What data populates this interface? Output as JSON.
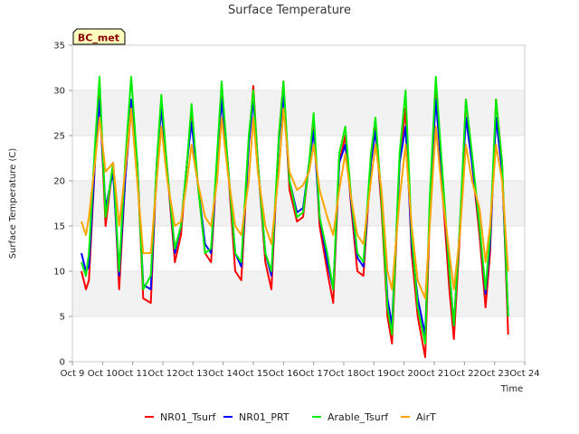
{
  "chart_data": {
    "type": "line",
    "title": "Surface Temperature",
    "xlabel": "Time",
    "ylabel": "Surface Temperature (C)",
    "site_label": "BC_met",
    "xlim": [
      9,
      24
    ],
    "ylim": [
      0,
      35
    ],
    "grid": "horizontal bands",
    "legend_position": "bottom",
    "x_ticks": [
      {
        "value": 9,
        "label": "Oct 9"
      },
      {
        "value": 10,
        "label": "Oct 10"
      },
      {
        "value": 11,
        "label": "Oct 11"
      },
      {
        "value": 12,
        "label": "Oct 12"
      },
      {
        "value": 13,
        "label": "Oct 13"
      },
      {
        "value": 14,
        "label": "Oct 14"
      },
      {
        "value": 15,
        "label": "Oct 15"
      },
      {
        "value": 16,
        "label": "Oct 16"
      },
      {
        "value": 17,
        "label": "Oct 17"
      },
      {
        "value": 18,
        "label": "Oct 18"
      },
      {
        "value": 19,
        "label": "Oct 19"
      },
      {
        "value": 20,
        "label": "Oct 20"
      },
      {
        "value": 21,
        "label": "Oct 21"
      },
      {
        "value": 22,
        "label": "Oct 22"
      },
      {
        "value": 23,
        "label": "Oct 23"
      },
      {
        "value": 24,
        "label": "Oct 24"
      }
    ],
    "y_ticks": [
      0,
      5,
      10,
      15,
      20,
      25,
      30,
      35
    ],
    "series": [
      {
        "name": "NR01_Tsurf",
        "color": "#ff0000",
        "x": [
          9.3,
          9.45,
          9.55,
          9.75,
          9.9,
          10.1,
          10.35,
          10.55,
          10.75,
          10.95,
          11.15,
          11.35,
          11.6,
          11.8,
          11.95,
          12.15,
          12.4,
          12.6,
          12.8,
          12.95,
          13.15,
          13.4,
          13.6,
          13.8,
          13.95,
          14.15,
          14.4,
          14.6,
          14.85,
          15.0,
          15.15,
          15.4,
          15.6,
          15.85,
          16.0,
          16.2,
          16.45,
          16.65,
          16.85,
          17.0,
          17.2,
          17.45,
          17.65,
          17.85,
          18.05,
          18.25,
          18.45,
          18.65,
          18.9,
          19.05,
          19.25,
          19.45,
          19.6,
          19.85,
          20.05,
          20.25,
          20.45,
          20.7,
          20.85,
          21.05,
          21.25,
          21.5,
          21.65,
          21.85,
          22.05,
          22.25,
          22.5,
          22.7,
          22.85,
          23.05,
          23.25,
          23.45
        ],
        "y": [
          10,
          8,
          9,
          22,
          30,
          15,
          22,
          8,
          20,
          28,
          22,
          7,
          6.5,
          22,
          29,
          21,
          11,
          14,
          22,
          28,
          20,
          12,
          11,
          22,
          30.5,
          22,
          10,
          9,
          24,
          30.5,
          22,
          11,
          8,
          25,
          31,
          19,
          15.5,
          16,
          22,
          27,
          15,
          10,
          6.5,
          22,
          25,
          17,
          10,
          9.5,
          22,
          26,
          17,
          5,
          2,
          22,
          28,
          12,
          5,
          0.5,
          16,
          30,
          20,
          8,
          2.5,
          14,
          29,
          22,
          14,
          6,
          12,
          29,
          22,
          3
        ]
      },
      {
        "name": "NR01_PRT",
        "color": "#0000ff",
        "x": [
          9.3,
          9.45,
          9.55,
          9.75,
          9.9,
          10.1,
          10.35,
          10.55,
          10.75,
          10.95,
          11.15,
          11.35,
          11.6,
          11.8,
          11.95,
          12.15,
          12.4,
          12.6,
          12.8,
          12.95,
          13.15,
          13.4,
          13.6,
          13.8,
          13.95,
          14.15,
          14.4,
          14.6,
          14.85,
          15.0,
          15.15,
          15.4,
          15.6,
          15.85,
          16.0,
          16.2,
          16.45,
          16.65,
          16.85,
          17.0,
          17.2,
          17.45,
          17.65,
          17.85,
          18.05,
          18.25,
          18.45,
          18.65,
          18.9,
          19.05,
          19.25,
          19.45,
          19.6,
          19.85,
          20.05,
          20.25,
          20.45,
          20.7,
          20.85,
          21.05,
          21.25,
          21.5,
          21.65,
          21.85,
          22.05,
          22.25,
          22.5,
          22.7,
          22.85,
          23.05,
          23.25,
          23.45
        ],
        "y": [
          12,
          10,
          10.5,
          22,
          29,
          17,
          21,
          9.5,
          20,
          29,
          22,
          8.5,
          8,
          22,
          28,
          21,
          12,
          15,
          22,
          26.5,
          20,
          13,
          12,
          22,
          29,
          22,
          12,
          10.5,
          24,
          29,
          22,
          12,
          9.5,
          24.5,
          29.5,
          20,
          16.5,
          17,
          22,
          25.5,
          16,
          11,
          8,
          22,
          24,
          17.5,
          11.5,
          10.5,
          22,
          25.5,
          18,
          7,
          4,
          22,
          26,
          13,
          7,
          3,
          17,
          29,
          21,
          10,
          4,
          15,
          27,
          22,
          15,
          7.5,
          13,
          27,
          21,
          5
        ]
      },
      {
        "name": "Arable_Tsurf",
        "color": "#00ee00",
        "x": [
          9.3,
          9.45,
          9.55,
          9.75,
          9.9,
          10.1,
          10.35,
          10.55,
          10.75,
          10.95,
          11.15,
          11.35,
          11.6,
          11.8,
          11.95,
          12.15,
          12.4,
          12.6,
          12.8,
          12.95,
          13.15,
          13.4,
          13.6,
          13.8,
          13.95,
          14.15,
          14.4,
          14.6,
          14.85,
          15.0,
          15.15,
          15.4,
          15.6,
          15.85,
          16.0,
          16.2,
          16.45,
          16.65,
          16.85,
          17.0,
          17.2,
          17.45,
          17.65,
          17.85,
          18.05,
          18.25,
          18.45,
          18.65,
          18.9,
          19.05,
          19.25,
          19.45,
          19.6,
          19.85,
          20.05,
          20.25,
          20.45,
          20.7,
          20.85,
          21.05,
          21.25,
          21.5,
          21.65,
          21.85,
          22.05,
          22.25,
          22.5,
          22.7,
          22.85,
          23.05,
          23.25,
          23.45
        ],
        "y": [
          11,
          9.5,
          12,
          24,
          31.5,
          16,
          22,
          10,
          22,
          31.5,
          22,
          8,
          9.5,
          22,
          29.5,
          21,
          12.5,
          15,
          22,
          28.5,
          20,
          12,
          12.5,
          23,
          31,
          22,
          12,
          11,
          25,
          30,
          22,
          12,
          10,
          25,
          31,
          20,
          16,
          16.5,
          22,
          27.5,
          16,
          12,
          8,
          23,
          26,
          18,
          12,
          11,
          23,
          27,
          18,
          6,
          3,
          23,
          30,
          14,
          6,
          2,
          18,
          31.5,
          22,
          10,
          4,
          15,
          29,
          23,
          15,
          8,
          14,
          29,
          22,
          5
        ]
      },
      {
        "name": "AirT",
        "color": "#ffa500",
        "x": [
          9.3,
          9.45,
          9.55,
          9.75,
          9.9,
          10.1,
          10.35,
          10.55,
          10.75,
          10.95,
          11.15,
          11.35,
          11.6,
          11.8,
          11.95,
          12.15,
          12.4,
          12.6,
          12.8,
          12.95,
          13.15,
          13.4,
          13.6,
          13.8,
          13.95,
          14.15,
          14.4,
          14.6,
          14.85,
          15.0,
          15.15,
          15.4,
          15.6,
          15.85,
          16.0,
          16.2,
          16.45,
          16.65,
          16.85,
          17.0,
          17.2,
          17.45,
          17.65,
          17.85,
          18.05,
          18.25,
          18.45,
          18.65,
          18.9,
          19.05,
          19.25,
          19.45,
          19.6,
          19.85,
          20.05,
          20.25,
          20.45,
          20.7,
          20.85,
          21.05,
          21.25,
          21.5,
          21.65,
          21.85,
          22.05,
          22.25,
          22.5,
          22.7,
          22.85,
          23.05,
          23.25,
          23.45
        ],
        "y": [
          15.5,
          14,
          16,
          22,
          27,
          21,
          22,
          15,
          21,
          28,
          20,
          12,
          12,
          20,
          26,
          20,
          15,
          15.5,
          20,
          24,
          20,
          16,
          15,
          20,
          27,
          21,
          15,
          14,
          20,
          27,
          21,
          15,
          13,
          21,
          28,
          21,
          19,
          19.5,
          21,
          24,
          19,
          16,
          14,
          19,
          23,
          18,
          14,
          13,
          20,
          24,
          19,
          10,
          8,
          18,
          24,
          15,
          9,
          7,
          15,
          26,
          19,
          12,
          8,
          14,
          24,
          20,
          17,
          11,
          15,
          24,
          20,
          10
        ]
      }
    ]
  }
}
